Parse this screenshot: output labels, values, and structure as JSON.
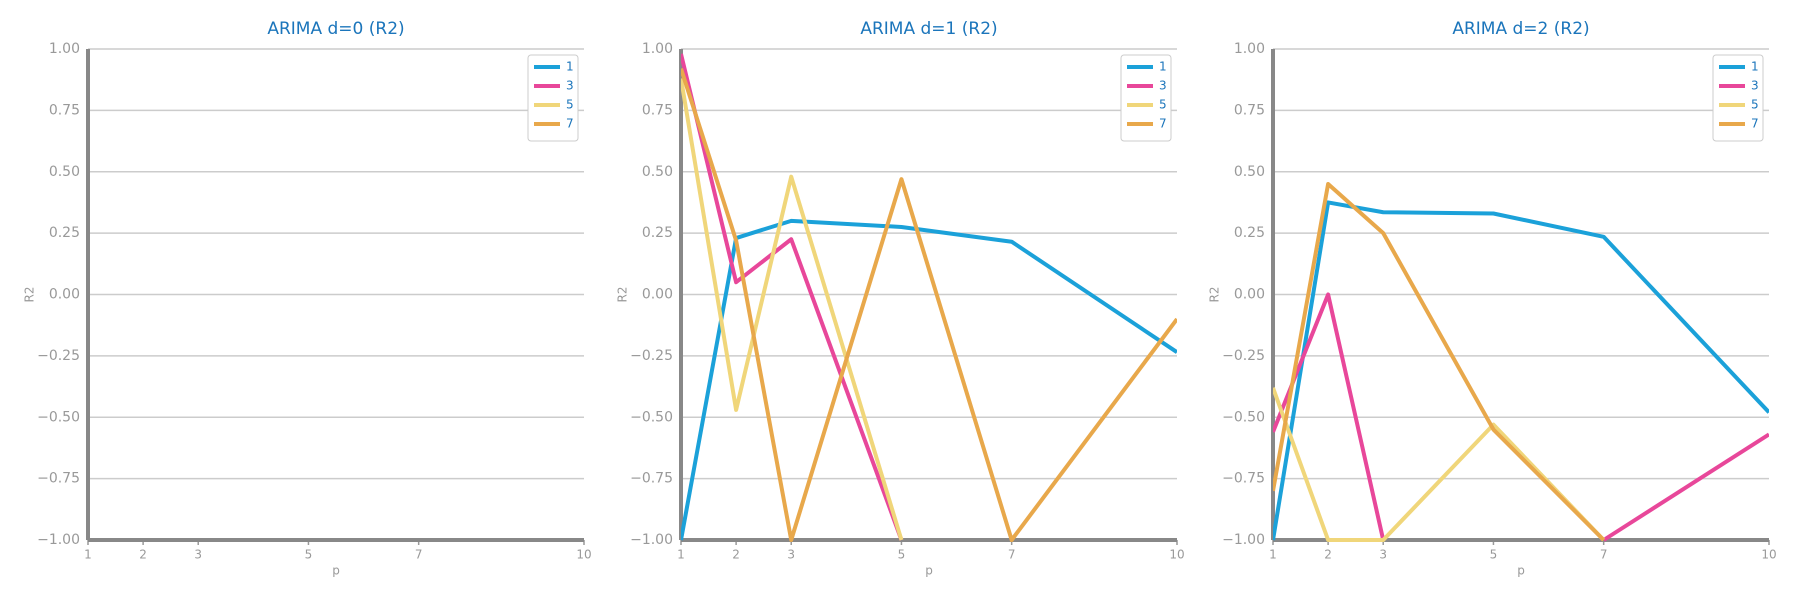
{
  "chart_data": [
    {
      "type": "line",
      "title": "ARIMA d=0 (R2)",
      "x_label": "p",
      "y_label": "R2",
      "x": [
        1,
        2,
        3,
        5,
        7,
        10
      ],
      "xlim": [
        1,
        10
      ],
      "xticks": [
        1,
        2,
        3,
        5,
        7,
        10
      ],
      "ylim": [
        -1,
        1
      ],
      "yticks": [
        {
          "value": -1,
          "label": "−1.00"
        },
        {
          "value": -0.75,
          "label": "−0.75"
        },
        {
          "value": -0.5,
          "label": "−0.50"
        },
        {
          "value": -0.25,
          "label": "−0.25"
        },
        {
          "value": 0,
          "label": "0.00"
        },
        {
          "value": 0.25,
          "label": "0.25"
        },
        {
          "value": 0.5,
          "label": "0.50"
        },
        {
          "value": 0.75,
          "label": "0.75"
        },
        {
          "value": 1,
          "label": "1.00"
        }
      ],
      "grid": true,
      "legend": "upper right",
      "series": [
        {
          "name": "1",
          "color": "#1ba1d9",
          "values": [
            null,
            null,
            null,
            null,
            null,
            null
          ]
        },
        {
          "name": "3",
          "color": "#e8479a",
          "values": [
            null,
            null,
            null,
            null,
            null,
            null
          ]
        },
        {
          "name": "5",
          "color": "#f0d67a",
          "values": [
            null,
            null,
            null,
            null,
            null,
            null
          ]
        },
        {
          "name": "7",
          "color": "#e8a84b",
          "values": [
            null,
            null,
            null,
            null,
            null,
            null
          ]
        }
      ]
    },
    {
      "type": "line",
      "title": "ARIMA d=1 (R2)",
      "x_label": "p",
      "y_label": "R2",
      "x": [
        1,
        2,
        3,
        5,
        7,
        10
      ],
      "xlim": [
        1,
        10
      ],
      "xticks": [
        1,
        2,
        3,
        5,
        7,
        10
      ],
      "ylim": [
        -1,
        1
      ],
      "yticks": [
        {
          "value": -1,
          "label": "−1.00"
        },
        {
          "value": -0.75,
          "label": "−0.75"
        },
        {
          "value": -0.5,
          "label": "−0.50"
        },
        {
          "value": -0.25,
          "label": "−0.25"
        },
        {
          "value": 0,
          "label": "0.00"
        },
        {
          "value": 0.25,
          "label": "0.25"
        },
        {
          "value": 0.5,
          "label": "0.50"
        },
        {
          "value": 0.75,
          "label": "0.75"
        },
        {
          "value": 1,
          "label": "1.00"
        }
      ],
      "grid": true,
      "legend": "upper right",
      "series": [
        {
          "name": "1",
          "color": "#1ba1d9",
          "values": [
            -1.0,
            0.23,
            0.3,
            0.275,
            0.215,
            -0.235
          ]
        },
        {
          "name": "3",
          "color": "#e8479a",
          "values": [
            0.98,
            0.05,
            0.225,
            -1.0,
            null,
            null
          ]
        },
        {
          "name": "5",
          "color": "#f0d67a",
          "values": [
            0.88,
            -0.47,
            0.48,
            -1.0,
            null,
            null
          ]
        },
        {
          "name": "7",
          "color": "#e8a84b",
          "values": [
            0.92,
            0.22,
            -1.0,
            0.47,
            -1.0,
            -0.1
          ]
        }
      ]
    },
    {
      "type": "line",
      "title": "ARIMA d=2 (R2)",
      "x_label": "p",
      "y_label": "R2",
      "x": [
        1,
        2,
        3,
        5,
        7,
        10
      ],
      "xlim": [
        1,
        10
      ],
      "xticks": [
        1,
        2,
        3,
        5,
        7,
        10
      ],
      "ylim": [
        -1,
        1
      ],
      "yticks": [
        {
          "value": -1,
          "label": "−1.00"
        },
        {
          "value": -0.75,
          "label": "−0.75"
        },
        {
          "value": -0.5,
          "label": "−0.50"
        },
        {
          "value": -0.25,
          "label": "−0.25"
        },
        {
          "value": 0,
          "label": "0.00"
        },
        {
          "value": 0.25,
          "label": "0.25"
        },
        {
          "value": 0.5,
          "label": "0.50"
        },
        {
          "value": 0.75,
          "label": "0.75"
        },
        {
          "value": 1,
          "label": "1.00"
        }
      ],
      "grid": true,
      "legend": "upper right",
      "series": [
        {
          "name": "1",
          "color": "#1ba1d9",
          "values": [
            -1.0,
            0.375,
            0.335,
            0.33,
            0.235,
            -0.48
          ]
        },
        {
          "name": "3",
          "color": "#e8479a",
          "values": [
            -0.56,
            0.0,
            -1.0,
            null,
            -1.0,
            -0.57
          ]
        },
        {
          "name": "5",
          "color": "#f0d67a",
          "values": [
            -0.38,
            -1.0,
            -1.0,
            -0.53,
            -1.0,
            null
          ]
        },
        {
          "name": "7",
          "color": "#e8a84b",
          "values": [
            -0.8,
            0.45,
            0.25,
            -0.55,
            -1.0,
            null
          ]
        }
      ]
    }
  ]
}
